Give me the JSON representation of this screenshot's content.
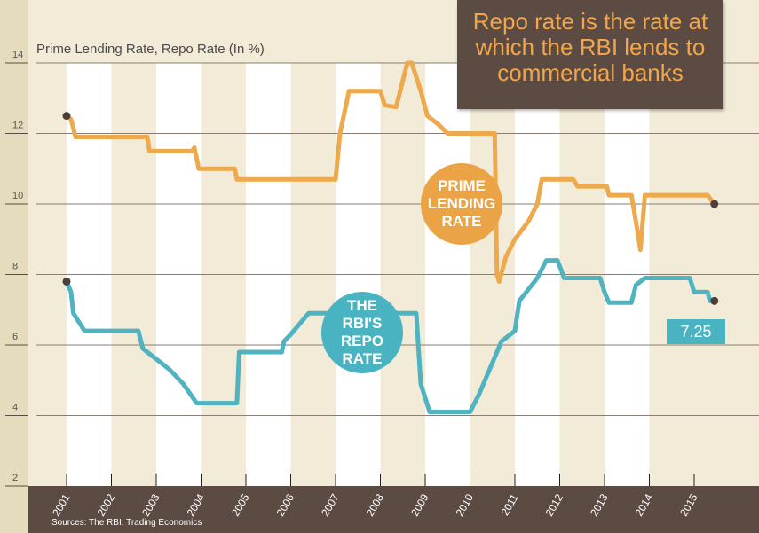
{
  "title_box": {
    "text": "Repo rate is the rate at which the RBI lends to commercial banks"
  },
  "chart_data": {
    "type": "line",
    "ylabel": "Prime Lending Rate, Repo Rate (In %)",
    "ylim": [
      2,
      14
    ],
    "yticks": [
      2,
      4,
      6,
      8,
      10,
      12,
      14
    ],
    "xlim": [
      2000.4,
      2016.5
    ],
    "xticks": [
      "2001",
      "2002",
      "2003",
      "2004",
      "2005",
      "2006",
      "2007",
      "2008",
      "2009",
      "2010",
      "2011",
      "2012",
      "2013",
      "2014",
      "2015"
    ],
    "grid": true,
    "series": [
      {
        "name": "PRIME LENDING RATE",
        "color": "#eea94c",
        "points": [
          [
            2001.0,
            12.5
          ],
          [
            2001.1,
            12.4
          ],
          [
            2001.2,
            11.9
          ],
          [
            2002.8,
            11.9
          ],
          [
            2002.85,
            11.5
          ],
          [
            2003.8,
            11.5
          ],
          [
            2003.85,
            11.6
          ],
          [
            2003.95,
            11.0
          ],
          [
            2004.75,
            11.0
          ],
          [
            2004.8,
            10.7
          ],
          [
            2007.0,
            10.7
          ],
          [
            2007.1,
            12.0
          ],
          [
            2007.3,
            13.2
          ],
          [
            2008.0,
            13.2
          ],
          [
            2008.1,
            12.8
          ],
          [
            2008.35,
            12.75
          ],
          [
            2008.6,
            14.0
          ],
          [
            2008.7,
            14.0
          ],
          [
            2008.9,
            13.2
          ],
          [
            2009.05,
            12.5
          ],
          [
            2009.3,
            12.25
          ],
          [
            2009.5,
            12.0
          ],
          [
            2010.55,
            12.0
          ],
          [
            2010.6,
            8.0
          ],
          [
            2010.65,
            7.8
          ],
          [
            2010.8,
            8.5
          ],
          [
            2011.0,
            9.0
          ],
          [
            2011.3,
            9.5
          ],
          [
            2011.5,
            10.0
          ],
          [
            2011.6,
            10.7
          ],
          [
            2012.3,
            10.7
          ],
          [
            2012.4,
            10.5
          ],
          [
            2013.05,
            10.5
          ],
          [
            2013.1,
            10.25
          ],
          [
            2013.6,
            10.25
          ],
          [
            2013.7,
            9.5
          ],
          [
            2013.8,
            8.7
          ],
          [
            2013.9,
            10.25
          ],
          [
            2015.3,
            10.25
          ],
          [
            2015.45,
            10.0
          ]
        ]
      },
      {
        "name": "THE RBI'S REPO RATE",
        "color": "#4fb3c1",
        "points": [
          [
            2001.0,
            7.8
          ],
          [
            2001.1,
            7.5
          ],
          [
            2001.15,
            6.9
          ],
          [
            2001.4,
            6.4
          ],
          [
            2002.6,
            6.4
          ],
          [
            2002.7,
            5.9
          ],
          [
            2003.0,
            5.6
          ],
          [
            2003.3,
            5.3
          ],
          [
            2003.6,
            4.9
          ],
          [
            2003.9,
            4.35
          ],
          [
            2004.8,
            4.35
          ],
          [
            2004.85,
            5.8
          ],
          [
            2005.8,
            5.8
          ],
          [
            2005.85,
            6.1
          ],
          [
            2006.0,
            6.3
          ],
          [
            2006.4,
            6.9
          ],
          [
            2008.8,
            6.9
          ],
          [
            2008.9,
            4.9
          ],
          [
            2009.1,
            4.1
          ],
          [
            2010.0,
            4.1
          ],
          [
            2010.2,
            4.6
          ],
          [
            2010.5,
            5.5
          ],
          [
            2010.7,
            6.1
          ],
          [
            2011.0,
            6.4
          ],
          [
            2011.1,
            7.25
          ],
          [
            2011.5,
            7.9
          ],
          [
            2011.7,
            8.4
          ],
          [
            2011.95,
            8.4
          ],
          [
            2012.1,
            7.9
          ],
          [
            2012.9,
            7.9
          ],
          [
            2013.0,
            7.5
          ],
          [
            2013.1,
            7.2
          ],
          [
            2013.6,
            7.2
          ],
          [
            2013.7,
            7.7
          ],
          [
            2013.9,
            7.9
          ],
          [
            2014.9,
            7.9
          ],
          [
            2015.0,
            7.5
          ],
          [
            2015.3,
            7.5
          ],
          [
            2015.35,
            7.25
          ],
          [
            2015.45,
            7.25
          ]
        ]
      }
    ],
    "annotations": {
      "plr_bubble": "PRIME LENDING RATE",
      "repo_bubble": "THE RBI'S REPO RATE",
      "last_value": "7.25"
    },
    "source": "Sources: The RBI, Trading Economics"
  },
  "colors": {
    "background": "#f1ebd7",
    "band": "#5c4b43",
    "accent": "#f2a64c"
  }
}
